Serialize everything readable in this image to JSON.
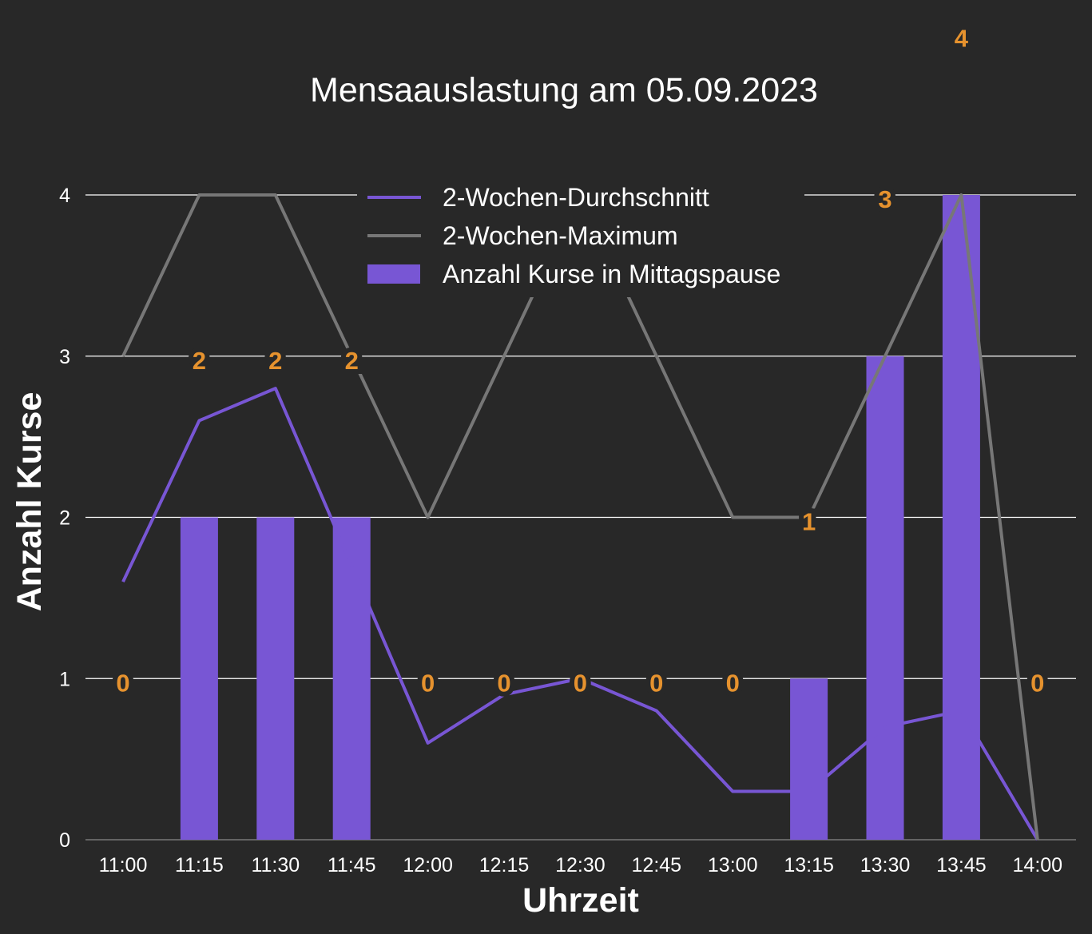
{
  "chart_data": {
    "type": "bar",
    "title": "Mensaauslastung am 05.09.2023",
    "xlabel": "Uhrzeit",
    "ylabel": "Anzahl Kurse",
    "categories": [
      "11:00",
      "11:15",
      "11:30",
      "11:45",
      "12:00",
      "12:15",
      "12:30",
      "12:45",
      "13:00",
      "13:15",
      "13:30",
      "13:45",
      "14:00"
    ],
    "ylim": [
      0,
      4
    ],
    "yticks": [
      "0",
      "1",
      "2",
      "3",
      "4"
    ],
    "grid": true,
    "legend_position": "top-center",
    "series": [
      {
        "name": "Anzahl Kurse in Mittagspause",
        "type": "bar",
        "color": "#7856d4",
        "values": [
          0,
          2,
          2,
          2,
          0,
          0,
          0,
          0,
          0,
          1,
          3,
          4,
          0
        ]
      },
      {
        "name": "2-Wochen-Durchschnitt",
        "type": "line",
        "color": "#7856d4",
        "values": [
          1.6,
          2.6,
          2.8,
          1.7,
          0.6,
          0.9,
          1.0,
          0.8,
          0.3,
          0.3,
          0.7,
          0.8,
          0
        ]
      },
      {
        "name": "2-Wochen-Maximum",
        "type": "line",
        "color": "#777777",
        "values": [
          3,
          4,
          4,
          3,
          2,
          3,
          4,
          3,
          2,
          2,
          3,
          4,
          0
        ]
      }
    ],
    "data_labels": [
      "0",
      "2",
      "2",
      "2",
      "0",
      "0",
      "0",
      "0",
      "0",
      "1",
      "3",
      "4",
      "0"
    ],
    "data_label_color": "#e6922e"
  }
}
